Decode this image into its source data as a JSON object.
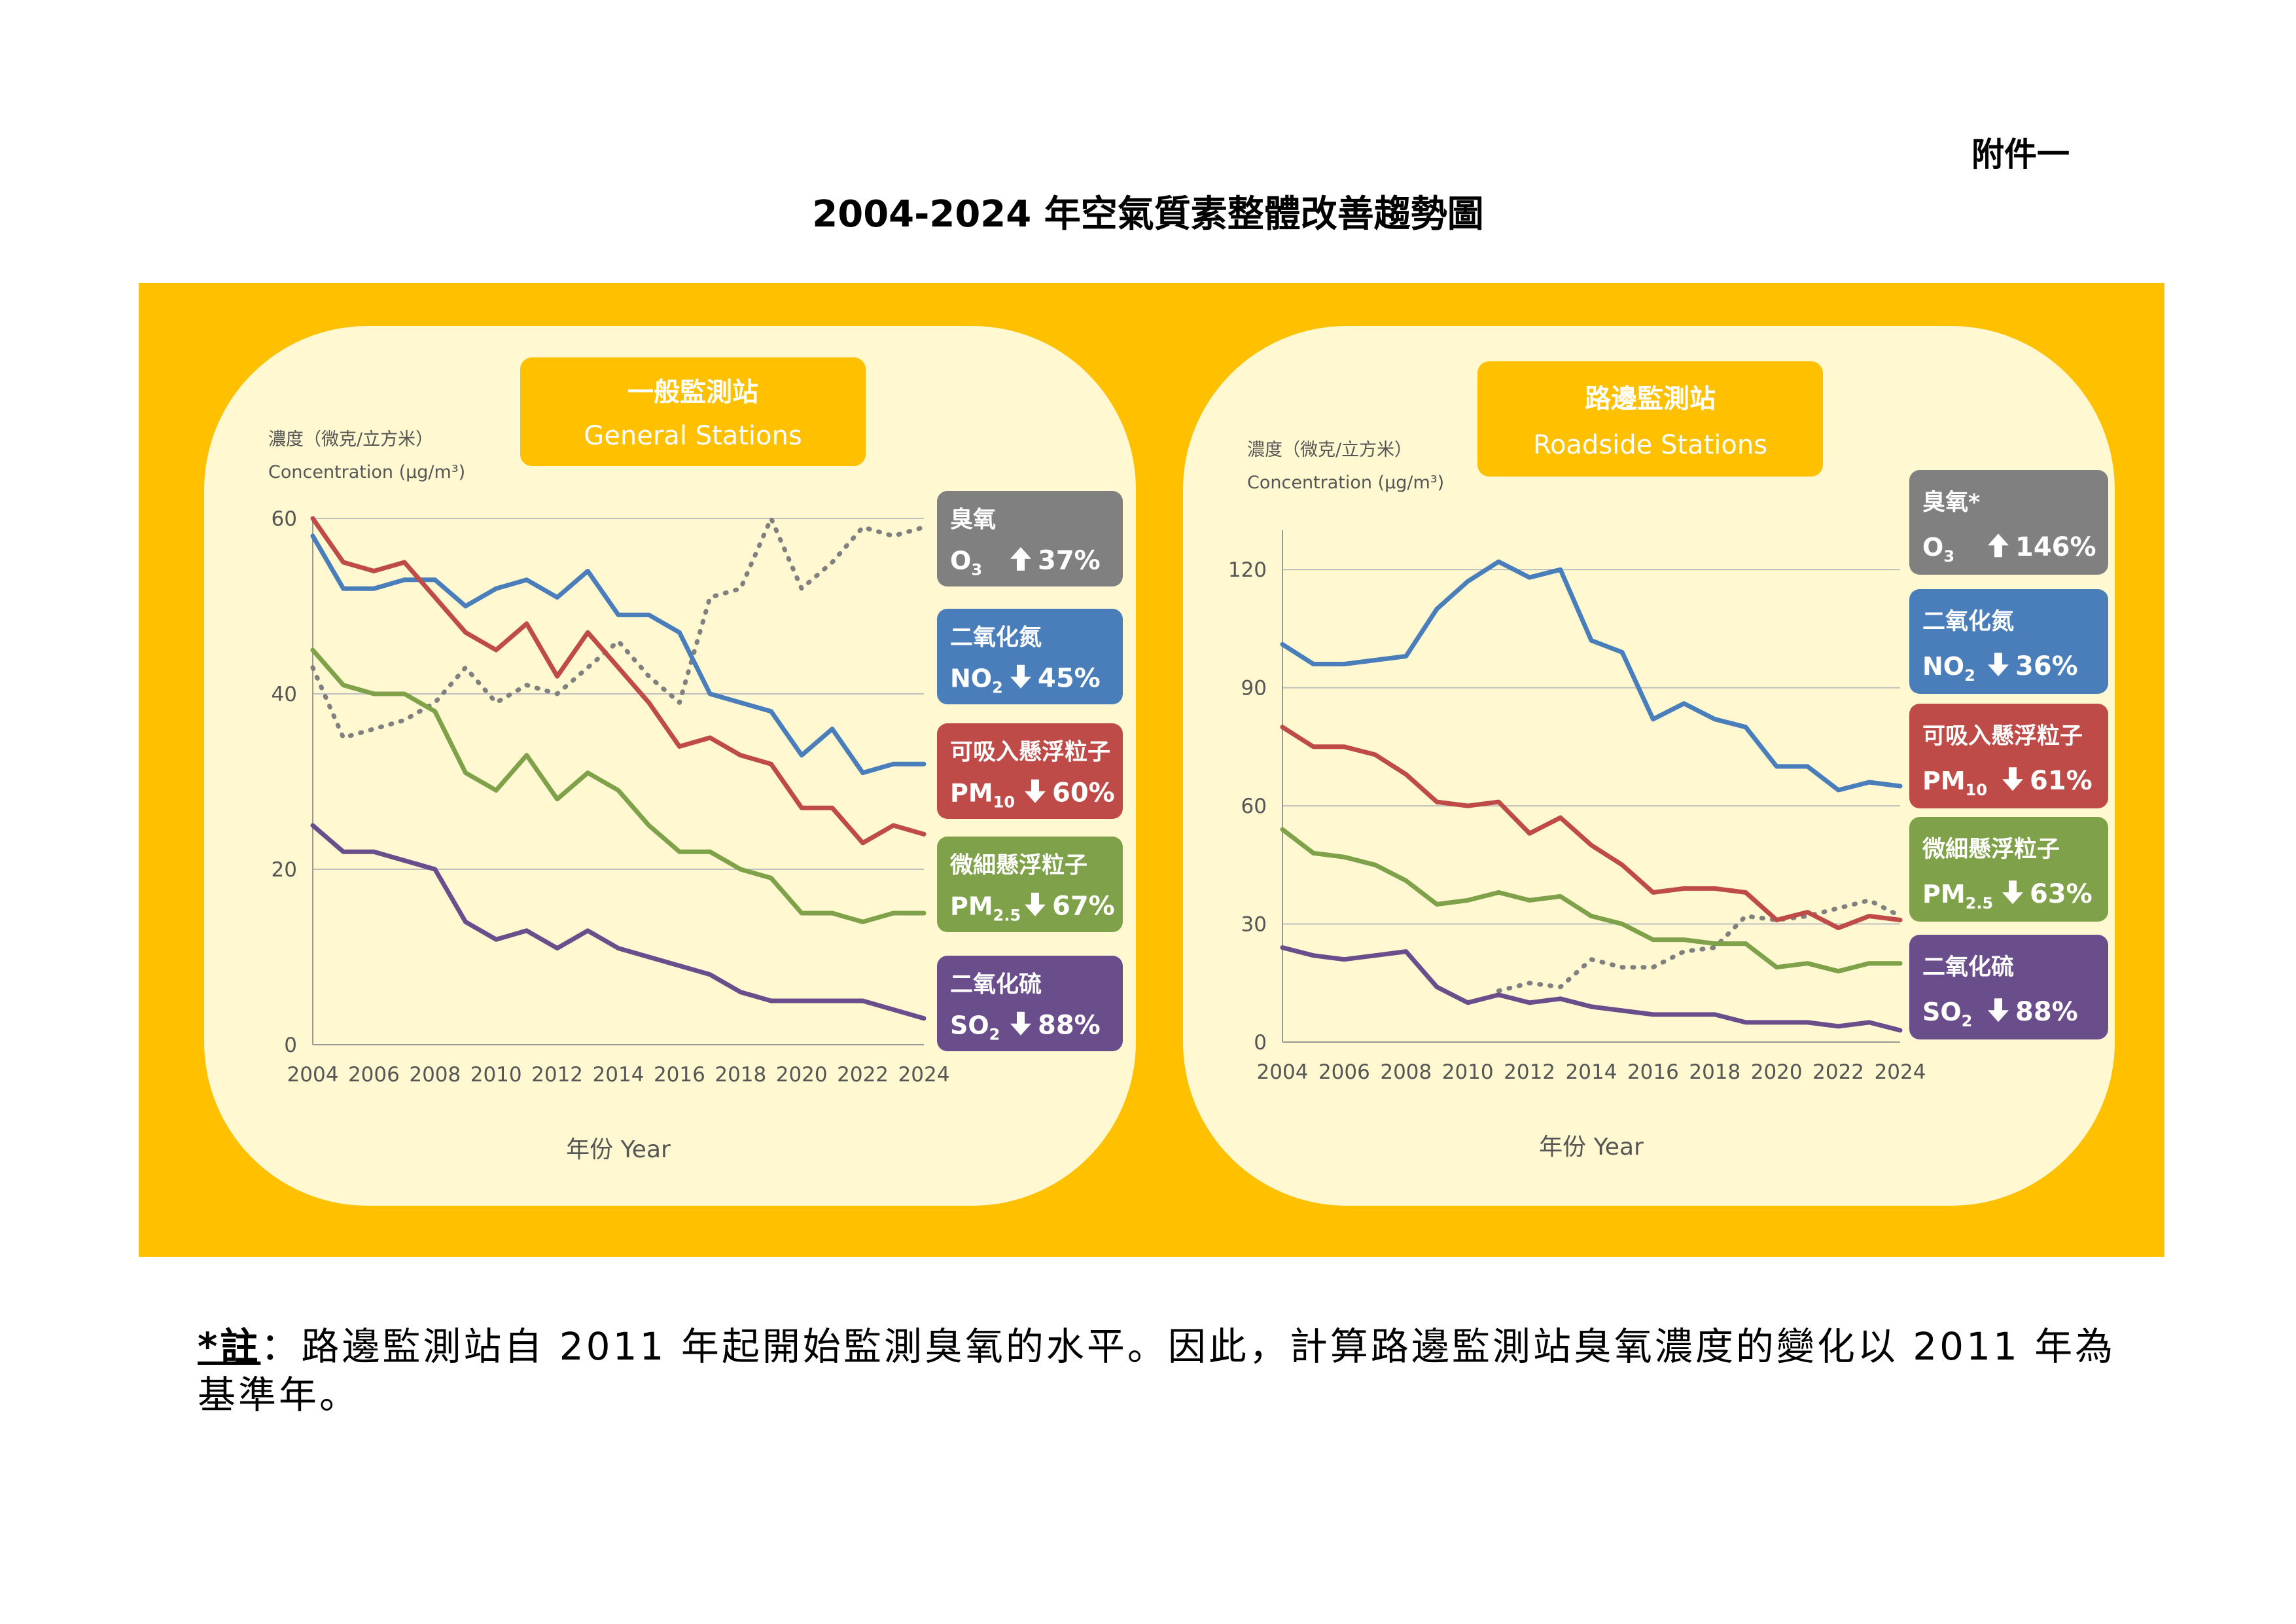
{
  "header": {
    "annex": "附件一",
    "title": "2004-2024 年空氣質素整體改善趨勢圖"
  },
  "footnote": {
    "label": "*註",
    "text": "：路邊監測站自 2011 年起開始監測臭氧的水平。因此，計算路邊監測站臭氧濃度的變化以 2011 年為基準年。"
  },
  "colors": {
    "background": "#FFC000",
    "panel": "#FFF8D0",
    "O3": "#808080",
    "NO2": "#4A7EBB",
    "PM10": "#BE4B48",
    "PM25": "#7FA14A",
    "SO2": "#6A4E8C"
  },
  "chart_data": [
    {
      "type": "line",
      "title_zh": "一般監測站",
      "title_en": "General Stations",
      "ylabel_zh": "濃度（微克/立方米）",
      "ylabel_en": "Concentration (μg/m³)",
      "xlabel": "年份 Year",
      "ylim": [
        0,
        60
      ],
      "yticks": [
        0,
        20,
        40,
        60
      ],
      "xlim": [
        2004,
        2024
      ],
      "xticks": [
        2004,
        2006,
        2008,
        2010,
        2012,
        2014,
        2016,
        2018,
        2020,
        2022,
        2024
      ],
      "grid": true,
      "x": [
        2004,
        2005,
        2006,
        2007,
        2008,
        2009,
        2010,
        2011,
        2012,
        2013,
        2014,
        2015,
        2016,
        2017,
        2018,
        2019,
        2020,
        2021,
        2022,
        2023,
        2024
      ],
      "series": [
        {
          "key": "O3",
          "name_zh": "臭氧",
          "name_en": "O3",
          "change": "37%",
          "direction": "up",
          "style": "dotted",
          "values": [
            43,
            35,
            36,
            37,
            39,
            43,
            39,
            41,
            40,
            43,
            46,
            42,
            39,
            51,
            52,
            60,
            52,
            55,
            59,
            58,
            59
          ]
        },
        {
          "key": "NO2",
          "name_zh": "二氧化氮",
          "name_en": "NO2",
          "change": "45%",
          "direction": "down",
          "style": "solid",
          "values": [
            58,
            52,
            52,
            53,
            53,
            50,
            52,
            53,
            51,
            54,
            49,
            49,
            47,
            40,
            39,
            38,
            33,
            36,
            31,
            32,
            32
          ]
        },
        {
          "key": "PM10",
          "name_zh": "可吸入懸浮粒子",
          "name_en": "PM10",
          "change": "60%",
          "direction": "down",
          "style": "solid",
          "values": [
            60,
            55,
            54,
            55,
            51,
            47,
            45,
            48,
            42,
            47,
            43,
            39,
            34,
            35,
            33,
            32,
            27,
            27,
            23,
            25,
            24
          ]
        },
        {
          "key": "PM25",
          "name_zh": "微細懸浮粒子",
          "name_en": "PM2.5",
          "change": "67%",
          "direction": "down",
          "style": "solid",
          "values": [
            45,
            41,
            40,
            40,
            38,
            31,
            29,
            33,
            28,
            31,
            29,
            25,
            22,
            22,
            20,
            19,
            15,
            15,
            14,
            15,
            15
          ]
        },
        {
          "key": "SO2",
          "name_zh": "二氧化硫",
          "name_en": "SO2",
          "change": "88%",
          "direction": "down",
          "style": "solid",
          "values": [
            25,
            22,
            22,
            21,
            20,
            14,
            12,
            13,
            11,
            13,
            11,
            10,
            9,
            8,
            6,
            5,
            5,
            5,
            5,
            4,
            3
          ]
        }
      ]
    },
    {
      "type": "line",
      "title_zh": "路邊監測站",
      "title_en": "Roadside Stations",
      "ylabel_zh": "濃度（微克/立方米）",
      "ylabel_en": "Concentration (μg/m³)",
      "xlabel": "年份 Year",
      "ylim": [
        0,
        130
      ],
      "yticks": [
        0,
        30,
        60,
        90,
        120
      ],
      "xlim": [
        2004,
        2024
      ],
      "xticks": [
        2004,
        2006,
        2008,
        2010,
        2012,
        2014,
        2016,
        2018,
        2020,
        2022,
        2024
      ],
      "grid": true,
      "x": [
        2004,
        2005,
        2006,
        2007,
        2008,
        2009,
        2010,
        2011,
        2012,
        2013,
        2014,
        2015,
        2016,
        2017,
        2018,
        2019,
        2020,
        2021,
        2022,
        2023,
        2024
      ],
      "series": [
        {
          "key": "O3",
          "name_zh": "臭氧*",
          "name_en": "O3",
          "change": "146%",
          "direction": "up",
          "style": "dotted",
          "values": [
            null,
            null,
            null,
            null,
            null,
            null,
            null,
            13,
            15,
            14,
            21,
            19,
            19,
            23,
            24,
            32,
            31,
            32,
            34,
            36,
            32
          ]
        },
        {
          "key": "NO2",
          "name_zh": "二氧化氮",
          "name_en": "NO2",
          "change": "36%",
          "direction": "down",
          "style": "solid",
          "values": [
            101,
            96,
            96,
            97,
            98,
            110,
            117,
            122,
            118,
            120,
            102,
            99,
            82,
            86,
            82,
            80,
            70,
            70,
            64,
            66,
            65
          ]
        },
        {
          "key": "PM10",
          "name_zh": "可吸入懸浮粒子",
          "name_en": "PM10",
          "change": "61%",
          "direction": "down",
          "style": "solid",
          "values": [
            80,
            75,
            75,
            73,
            68,
            61,
            60,
            61,
            53,
            57,
            50,
            45,
            38,
            39,
            39,
            38,
            31,
            33,
            29,
            32,
            31
          ]
        },
        {
          "key": "PM25",
          "name_zh": "微細懸浮粒子",
          "name_en": "PM2.5",
          "change": "63%",
          "direction": "down",
          "style": "solid",
          "values": [
            54,
            48,
            47,
            45,
            41,
            35,
            36,
            38,
            36,
            37,
            32,
            30,
            26,
            26,
            25,
            25,
            19,
            20,
            18,
            20,
            20
          ]
        },
        {
          "key": "SO2",
          "name_zh": "二氧化硫",
          "name_en": "SO2",
          "change": "88%",
          "direction": "down",
          "style": "solid",
          "values": [
            24,
            22,
            21,
            22,
            23,
            14,
            10,
            12,
            10,
            11,
            9,
            8,
            7,
            7,
            7,
            5,
            5,
            5,
            4,
            5,
            3
          ]
        }
      ]
    }
  ]
}
